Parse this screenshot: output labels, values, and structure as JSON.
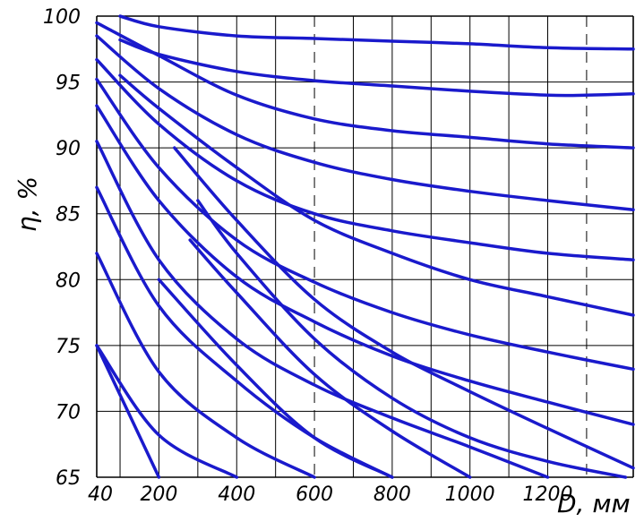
{
  "chart_data": {
    "type": "line",
    "title": "",
    "xlabel": "D, мм",
    "ylabel": "η, %",
    "xlim": [
      40,
      1420
    ],
    "ylim": [
      65,
      100
    ],
    "x_ticks": [
      "40",
      "200",
      "400",
      "600",
      "800",
      "1000",
      "1200"
    ],
    "x_tick_values": [
      40,
      200,
      400,
      600,
      800,
      1000,
      1200
    ],
    "y_ticks": [
      "100",
      "95",
      "90",
      "85",
      "80",
      "75",
      "70",
      "65"
    ],
    "y_tick_values": [
      100,
      95,
      90,
      85,
      80,
      75,
      70,
      65
    ],
    "grid": true,
    "grid_x": [
      40,
      100,
      200,
      300,
      400,
      500,
      600,
      700,
      800,
      900,
      1000,
      1100,
      1200,
      1300,
      1420
    ],
    "grid_y": [
      65,
      70,
      75,
      80,
      85,
      90,
      95,
      100
    ],
    "dashed_verticals": [
      600,
      1300
    ],
    "line_color": "#1a1acc",
    "series": [
      {
        "x": [
          100,
          200,
          400,
          600,
          800,
          1000,
          1200,
          1420
        ],
        "y": [
          100,
          99.2,
          98.5,
          98.3,
          98.1,
          97.9,
          97.6,
          97.5
        ]
      },
      {
        "x": [
          100,
          200,
          400,
          600,
          800,
          1000,
          1200,
          1300,
          1420
        ],
        "y": [
          98.2,
          97.1,
          95.8,
          95.1,
          94.7,
          94.3,
          94.0,
          94.0,
          94.1
        ]
      },
      {
        "x": [
          40,
          200,
          400,
          600,
          800,
          1000,
          1200,
          1420
        ],
        "y": [
          99.5,
          97.0,
          94.0,
          92.2,
          91.3,
          90.8,
          90.3,
          90.0
        ]
      },
      {
        "x": [
          40,
          200,
          400,
          600,
          800,
          1000,
          1200,
          1420
        ],
        "y": [
          98.5,
          94.5,
          91.0,
          88.9,
          87.6,
          86.7,
          86.0,
          85.3
        ]
      },
      {
        "x": [
          40,
          200,
          400,
          600,
          800,
          1000,
          1200,
          1420
        ],
        "y": [
          96.7,
          91.8,
          87.5,
          85.0,
          83.7,
          82.8,
          82.0,
          81.5
        ]
      },
      {
        "x": [
          100,
          200,
          400,
          600,
          800,
          1000,
          1200,
          1420
        ],
        "y": [
          95.5,
          93.0,
          88.5,
          84.5,
          82.0,
          80.0,
          78.7,
          77.3
        ]
      },
      {
        "x": [
          40,
          200,
          400,
          600,
          800,
          1000,
          1200,
          1420
        ],
        "y": [
          95.2,
          88.5,
          83.0,
          79.8,
          77.5,
          75.8,
          74.5,
          73.2
        ]
      },
      {
        "x": [
          40,
          200,
          400,
          600,
          800,
          1000,
          1200,
          1420
        ],
        "y": [
          93.2,
          86.0,
          80.2,
          76.8,
          74.2,
          72.3,
          70.7,
          69.0
        ]
      },
      {
        "x": [
          240,
          400,
          600,
          800,
          1000,
          1200,
          1420
        ],
        "y": [
          90.0,
          84.5,
          78.5,
          74.5,
          71.5,
          68.7,
          65.7
        ]
      },
      {
        "x": [
          300,
          400,
          600,
          800,
          1000,
          1200,
          1400
        ],
        "y": [
          86.0,
          82.0,
          75.5,
          71.0,
          68.0,
          66.2,
          65.0
        ]
      },
      {
        "x": [
          40,
          200,
          400,
          600,
          800,
          1000,
          1200
        ],
        "y": [
          90.5,
          81.5,
          75.5,
          72.0,
          69.5,
          67.3,
          65.0
        ]
      },
      {
        "x": [
          280,
          400,
          600,
          800,
          1000
        ],
        "y": [
          83.0,
          79.0,
          72.8,
          68.5,
          65.0
        ]
      },
      {
        "x": [
          40,
          200,
          400,
          600,
          800
        ],
        "y": [
          87.0,
          78.0,
          72.3,
          68.0,
          65.0
        ]
      },
      {
        "x": [
          200,
          400,
          600,
          800
        ],
        "y": [
          80.0,
          73.5,
          68.0,
          65.0
        ]
      },
      {
        "x": [
          40,
          200,
          400,
          600
        ],
        "y": [
          82.0,
          73.0,
          68.0,
          65.0
        ]
      },
      {
        "x": [
          40,
          200,
          400
        ],
        "y": [
          75.0,
          68.2,
          65.0
        ]
      },
      {
        "x": [
          40,
          200
        ],
        "y": [
          75.0,
          65.0
        ]
      }
    ]
  }
}
